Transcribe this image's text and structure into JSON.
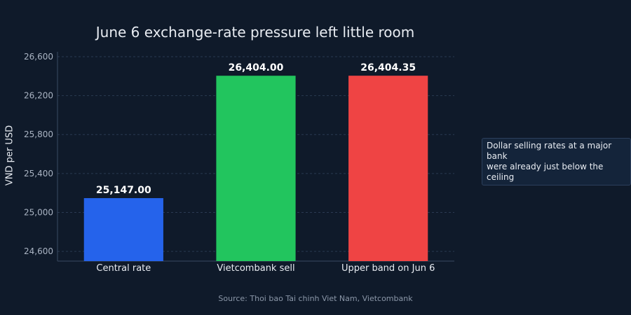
{
  "chart_data": {
    "type": "bar",
    "title": "June 6 exchange-rate pressure left little room",
    "ylabel": "VND per USD",
    "xlabel": "",
    "categories": [
      "Central rate",
      "Vietcombank sell",
      "Upper band on Jun 6"
    ],
    "values": [
      25147.0,
      26404.0,
      26404.35
    ],
    "value_labels": [
      "25,147.00",
      "26,404.00",
      "26,404.35"
    ],
    "colors": [
      "#2563eb",
      "#22c55e",
      "#ef4444"
    ],
    "ylim": [
      24500,
      26650
    ],
    "yticks": [
      24600,
      25000,
      25400,
      25800,
      26200,
      26600
    ],
    "ytick_labels": [
      "24,600",
      "25,000",
      "25,400",
      "25,800",
      "26,200",
      "26,600"
    ],
    "grid": true,
    "legend": false,
    "annotation": "Dollar selling rates at a major bank\nwere already just below the ceiling",
    "source": "Source: Thoi bao Tai chinh Viet Nam, Vietcombank"
  }
}
